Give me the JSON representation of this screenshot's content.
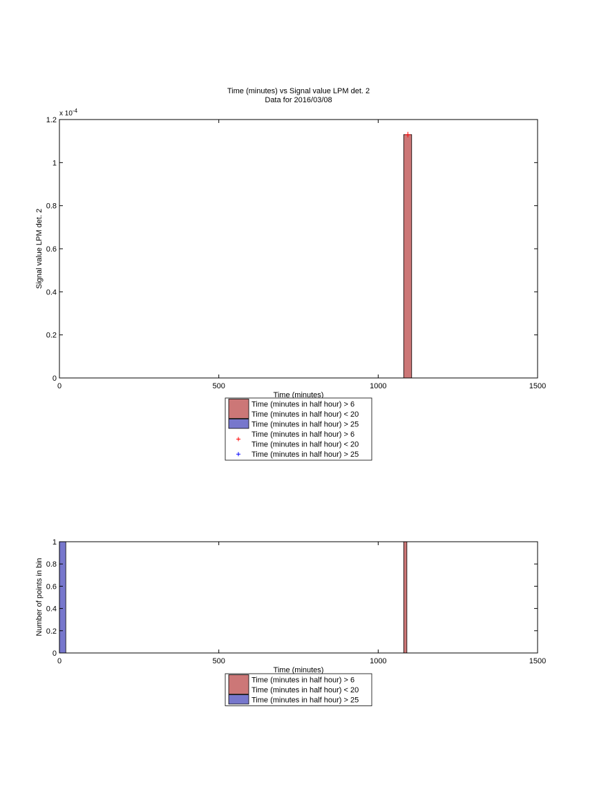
{
  "colors": {
    "red_bar": "#cc7777",
    "blue_bar": "#7777cc",
    "red_marker": "#ff0000",
    "blue_marker": "#0000ff",
    "axis": "#000000"
  },
  "chart_data": [
    {
      "type": "bar",
      "title": "Time (minutes) vs Signal value LPM det. 2",
      "subtitle": "Data for 2016/03/08",
      "xlabel": "Time (minutes)",
      "ylabel": "Signal value LPM det. 2",
      "exponent_label": "x 10",
      "exponent_power": "-4",
      "xlim": [
        0,
        1500
      ],
      "ylim": [
        0,
        1.2
      ],
      "xticks": [
        "0",
        "500",
        "1000",
        "1500"
      ],
      "yticks": [
        "0",
        "0.2",
        "0.4",
        "0.6",
        "0.8",
        "1",
        "1.2"
      ],
      "bars": [
        {
          "series": "Time (minutes in half hour) > 6 Time (minutes in half hour) < 20",
          "x_start": 1080,
          "x_end": 1105,
          "value": 1.13
        }
      ],
      "markers": [
        {
          "series": "Time (minutes in half hour) > 6 Time (minutes in half hour) < 20",
          "x": 1093,
          "value": 1.13,
          "symbol": "+"
        }
      ],
      "legend": [
        {
          "kind": "bar",
          "color": "red",
          "line1": "Time (minutes in half hour) > 6",
          "line2": "Time (minutes in half hour) < 20"
        },
        {
          "kind": "bar",
          "color": "blue",
          "line1": "Time (minutes in half hour) > 25",
          "line2": ""
        },
        {
          "kind": "marker",
          "color": "red",
          "line1": "Time (minutes in half hour) > 6",
          "line2": "Time (minutes in half hour) < 20"
        },
        {
          "kind": "marker",
          "color": "blue",
          "line1": "Time (minutes in half hour) > 25",
          "line2": ""
        }
      ],
      "legend_position": "below"
    },
    {
      "type": "bar",
      "xlabel": "Time (minutes)",
      "ylabel": "Number of points in bin",
      "xlim": [
        0,
        1500
      ],
      "ylim": [
        0,
        1
      ],
      "xticks": [
        "0",
        "500",
        "1000",
        "1500"
      ],
      "yticks": [
        "0",
        "0.2",
        "0.4",
        "0.6",
        "0.8",
        "1"
      ],
      "bars": [
        {
          "series": "Time (minutes in half hour) > 25",
          "x_start": 0,
          "x_end": 20,
          "value": 1
        },
        {
          "series": "Time (minutes in half hour) > 6 Time (minutes in half hour) < 20",
          "x_start": 1080,
          "x_end": 1090,
          "value": 1
        }
      ],
      "legend": [
        {
          "kind": "bar",
          "color": "red",
          "line1": "Time (minutes in half hour) > 6",
          "line2": "Time (minutes in half hour) < 20"
        },
        {
          "kind": "bar",
          "color": "blue",
          "line1": "Time (minutes in half hour) > 25",
          "line2": ""
        }
      ],
      "legend_position": "below"
    }
  ]
}
